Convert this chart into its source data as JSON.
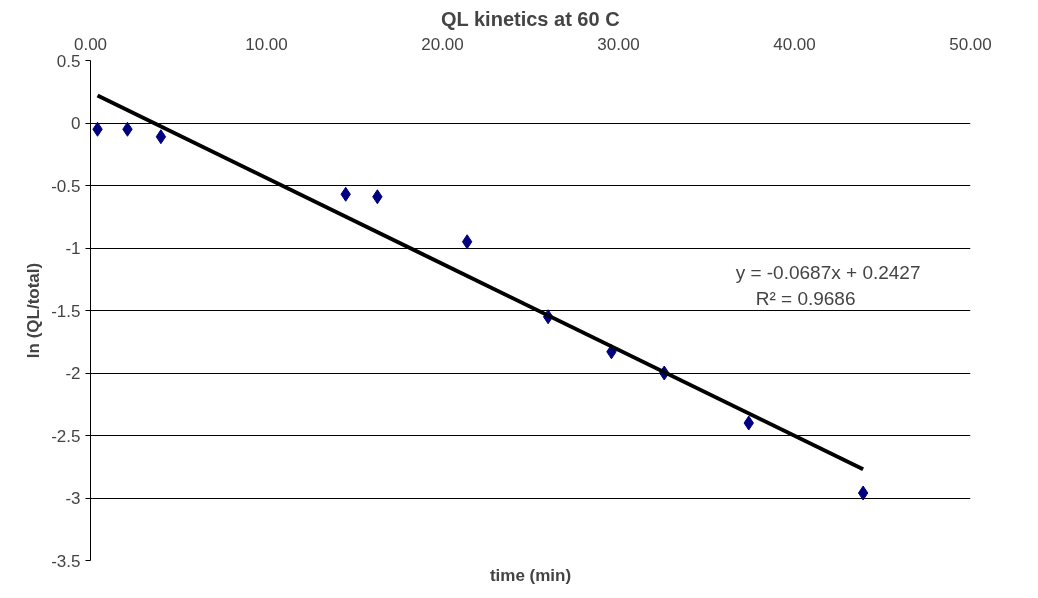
{
  "chart_data": {
    "type": "scatter",
    "title": "QL kinetics at 60 C",
    "xlabel": "time (min)",
    "ylabel": "ln (QL/total)",
    "x": [
      0.4,
      2.1,
      4.0,
      14.5,
      16.3,
      21.4,
      26.0,
      29.6,
      32.6,
      37.4,
      43.9
    ],
    "series": [
      {
        "color": "#000080",
        "marker": "diamond",
        "values": [
          -0.05,
          -0.05,
          -0.11,
          -0.57,
          -0.59,
          -0.95,
          -1.55,
          -1.83,
          -2.0,
          -2.4,
          -2.96
        ]
      },
      {
        "type": "line",
        "color": "#000000",
        "x": [
          0.4,
          43.9
        ],
        "values": [
          0.22,
          -2.77
        ],
        "line_style": "solid"
      }
    ],
    "annotations": [
      "y = -0.0687x + 0.2427",
      "R² = 0.9686"
    ],
    "xlim": [
      0,
      50
    ],
    "ylim": [
      -3.5,
      0.5
    ],
    "xticks": [
      {
        "value": 0,
        "label": "0.00"
      },
      {
        "value": 10,
        "label": "10.00"
      },
      {
        "value": 20,
        "label": "20.00"
      },
      {
        "value": 30,
        "label": "30.00"
      },
      {
        "value": 40,
        "label": "40.00"
      },
      {
        "value": 50,
        "label": "50.00"
      }
    ],
    "yticks": [
      0.5,
      0,
      -0.5,
      -1,
      -1.5,
      -2,
      -2.5,
      -3,
      -3.5
    ],
    "grid": "y"
  }
}
